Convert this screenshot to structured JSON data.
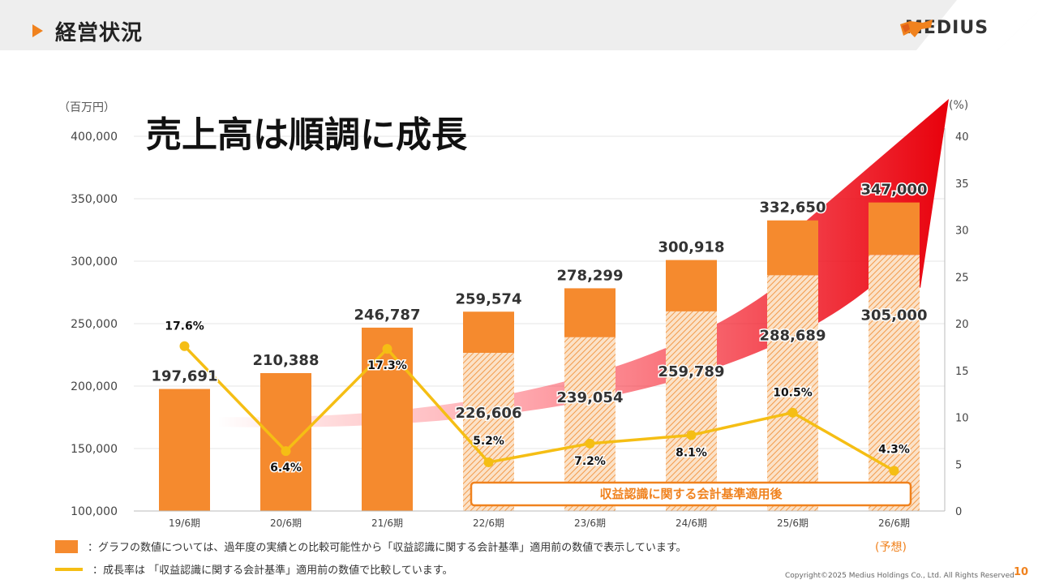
{
  "header": {
    "title": "経営状況"
  },
  "logo": {
    "text": "MEDIUS"
  },
  "headline": "売上高は順調に成長",
  "units": {
    "left": "（百万円）",
    "right": "(%)"
  },
  "forecast_label": "(予想)",
  "annotation_box": "収益認識に関する会計基準適用後",
  "legend": {
    "bar": "：グラフの数値については、過年度の実績との比較可能性から「収益認識に関する会計基準」適用前の数値で表示しています。",
    "line": "：成長率は 「収益認識に関する会計基準」適用前の数値で比較しています。"
  },
  "footer": {
    "copyright": "Copyright©2025 Medius Holdings Co., Ltd. All Rights Reserved",
    "page": "10"
  },
  "colors": {
    "accent": "#f58a2e",
    "line": "#f5be14",
    "arrow": "#e8000b"
  },
  "chart_data": {
    "type": "bar",
    "categories": [
      "19/6期",
      "20/6期",
      "21/6期",
      "22/6期",
      "23/6期",
      "24/6期",
      "25/6期",
      "26/6期"
    ],
    "series": [
      {
        "values": [
          197691,
          210388,
          246787,
          259574,
          278299,
          300918,
          332650,
          347000
        ]
      },
      {
        "values": [
          null,
          null,
          null,
          226606,
          239054,
          259789,
          288689,
          305000
        ]
      },
      {
        "values": [
          17.6,
          6.4,
          17.3,
          5.2,
          7.2,
          8.1,
          10.5,
          4.3
        ]
      }
    ],
    "bar_labels": [
      "197,691",
      "210,388",
      "246,787",
      "259,574",
      "278,299",
      "300,918",
      "332,650",
      "347,000"
    ],
    "inner_labels": [
      "",
      "",
      "",
      "226,606",
      "239,054",
      "259,789",
      "288,689",
      "305,000"
    ],
    "growth_labels": [
      "17.6%",
      "6.4%",
      "17.3%",
      "5.2%",
      "7.2%",
      "8.1%",
      "10.5%",
      "4.3%"
    ],
    "y_left": {
      "lim": [
        100000,
        400000
      ],
      "ticks": [
        "100,000",
        "150,000",
        "200,000",
        "250,000",
        "300,000",
        "350,000",
        "400,000"
      ]
    },
    "y_right": {
      "lim": [
        0,
        40
      ],
      "ticks": [
        "0",
        "5",
        "10",
        "15",
        "20",
        "25",
        "30",
        "35",
        "40"
      ]
    },
    "grid": true
  }
}
